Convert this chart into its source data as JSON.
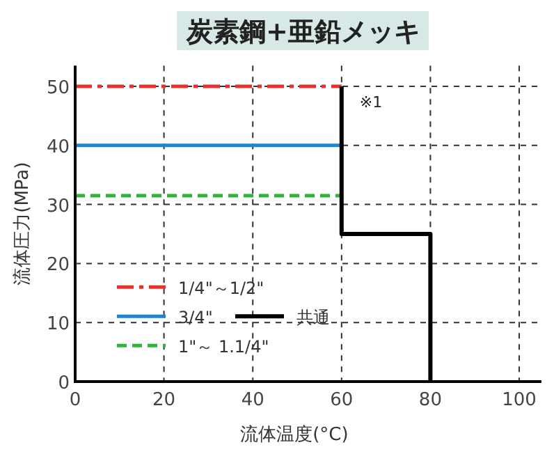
{
  "chart_data": {
    "type": "line",
    "title": "炭素鋼+亜鉛メッキ",
    "xlabel": "流体温度(°C)",
    "ylabel": "流体圧力(MPa)",
    "xlim": [
      0,
      105
    ],
    "ylim": [
      0,
      53.5
    ],
    "xticks": [
      0,
      20,
      40,
      60,
      80,
      100
    ],
    "yticks": [
      0,
      10,
      20,
      30,
      40,
      50
    ],
    "grid": true,
    "legend": "bottom left",
    "marker": "none",
    "series": [
      {
        "name": "1/4\"～1/2\"",
        "color": "#e8302c",
        "line_style": "dashdot",
        "x": [
          0,
          60
        ],
        "values": [
          50,
          50
        ]
      },
      {
        "name": "3/4\"",
        "color": "#1a86d0",
        "line_style": "solid",
        "x": [
          0,
          60
        ],
        "values": [
          40,
          40
        ]
      },
      {
        "name": "1\"～ 1.1/4\"",
        "color": "#2db53a",
        "line_style": "dashed",
        "x": [
          0,
          60
        ],
        "values": [
          31.5,
          31.5
        ]
      },
      {
        "name": "共通",
        "color": "#000000",
        "line_style": "solid",
        "x": [
          60,
          60,
          80,
          80
        ],
        "values": [
          50,
          25,
          25,
          0
        ]
      }
    ],
    "annotations": [
      {
        "text": "※1",
        "x": 60,
        "y": 50
      }
    ]
  }
}
